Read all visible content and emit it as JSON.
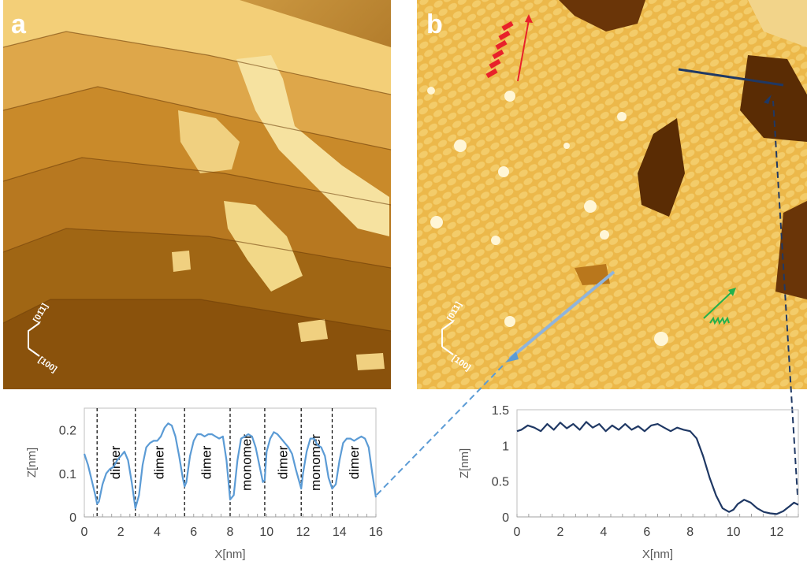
{
  "panels": {
    "a": {
      "label": "a",
      "orientation": {
        "axis1": "[01̄1]",
        "axis2": "[100]"
      }
    },
    "b": {
      "label": "b",
      "orientation": {
        "axis1": "[01̄1]",
        "axis2": "[100]"
      }
    }
  },
  "colors": {
    "terrace_dark": "#5a3000",
    "terrace_mid": "#c07a1a",
    "terrace_light": "#f2d68a",
    "highlight": "#fff2c0",
    "profile_left": "#5b9bd5",
    "profile_right": "#1f3864",
    "arrow_red": "#e8212a",
    "arrow_green": "#22b14c"
  },
  "chart_data": [
    {
      "type": "line",
      "xlabel": "X[nm]",
      "ylabel": "Z[nm]",
      "xlim": [
        0,
        16
      ],
      "ylim": [
        0,
        0.25
      ],
      "xticks": [
        0,
        2,
        4,
        6,
        8,
        10,
        12,
        14,
        16
      ],
      "yticks": [
        0,
        0.1,
        0.2
      ],
      "ytick_labels": [
        "0",
        "0.1",
        "0.2"
      ],
      "grid": false,
      "dividers": [
        0.7,
        2.8,
        5.5,
        8.0,
        9.9,
        11.9,
        13.6
      ],
      "segment_labels": [
        {
          "text": "dimer",
          "x": 1.7
        },
        {
          "text": "dimer",
          "x": 4.1
        },
        {
          "text": "dimer",
          "x": 6.7
        },
        {
          "text": "monomer",
          "x": 8.9
        },
        {
          "text": "dimer",
          "x": 10.9
        },
        {
          "text": "monomer",
          "x": 12.7
        },
        {
          "text": "dimer",
          "x": 14.8
        }
      ],
      "series": [
        {
          "x": [
            0,
            0.2,
            0.4,
            0.6,
            0.7,
            0.8,
            1.0,
            1.2,
            1.4,
            1.6,
            1.8,
            2.0,
            2.2,
            2.4,
            2.6,
            2.8,
            3.0,
            3.2,
            3.4,
            3.6,
            3.8,
            4.0,
            4.2,
            4.4,
            4.6,
            4.8,
            5.0,
            5.2,
            5.4,
            5.5,
            5.6,
            5.8,
            6.0,
            6.2,
            6.4,
            6.6,
            6.8,
            7.0,
            7.2,
            7.4,
            7.6,
            7.8,
            8.0,
            8.2,
            8.4,
            8.6,
            8.8,
            9.0,
            9.2,
            9.4,
            9.6,
            9.8,
            9.9,
            10.0,
            10.2,
            10.4,
            10.6,
            10.8,
            11.0,
            11.2,
            11.4,
            11.6,
            11.8,
            11.9,
            12.0,
            12.2,
            12.4,
            12.6,
            12.8,
            13.0,
            13.2,
            13.4,
            13.6,
            13.8,
            14.0,
            14.2,
            14.4,
            14.6,
            14.8,
            15.0,
            15.2,
            15.4,
            15.6,
            15.8,
            16.0
          ],
          "values": [
            0.145,
            0.12,
            0.085,
            0.05,
            0.03,
            0.035,
            0.075,
            0.1,
            0.11,
            0.115,
            0.13,
            0.14,
            0.15,
            0.13,
            0.08,
            0.02,
            0.05,
            0.12,
            0.16,
            0.17,
            0.175,
            0.175,
            0.185,
            0.205,
            0.215,
            0.21,
            0.185,
            0.14,
            0.09,
            0.07,
            0.08,
            0.14,
            0.175,
            0.19,
            0.19,
            0.185,
            0.19,
            0.19,
            0.185,
            0.18,
            0.185,
            0.13,
            0.04,
            0.05,
            0.13,
            0.18,
            0.185,
            0.19,
            0.185,
            0.16,
            0.12,
            0.08,
            0.085,
            0.15,
            0.18,
            0.195,
            0.19,
            0.18,
            0.17,
            0.16,
            0.145,
            0.11,
            0.08,
            0.065,
            0.1,
            0.15,
            0.18,
            0.18,
            0.165,
            0.16,
            0.14,
            0.09,
            0.065,
            0.075,
            0.13,
            0.17,
            0.18,
            0.18,
            0.175,
            0.18,
            0.185,
            0.18,
            0.16,
            0.1,
            0.045
          ]
        }
      ]
    },
    {
      "type": "line",
      "xlabel": "X[nm]",
      "ylabel": "Z[nm]",
      "xlim": [
        0,
        13
      ],
      "ylim": [
        0,
        1.5
      ],
      "xticks": [
        0,
        2,
        4,
        6,
        8,
        10,
        12
      ],
      "yticks": [
        0,
        0.5,
        1,
        1.5
      ],
      "ytick_labels": [
        "0",
        "0.5",
        "1",
        "1.5"
      ],
      "grid": false,
      "series": [
        {
          "x": [
            0,
            0.2,
            0.5,
            0.8,
            1.1,
            1.4,
            1.7,
            2.0,
            2.3,
            2.6,
            2.9,
            3.2,
            3.5,
            3.8,
            4.1,
            4.4,
            4.7,
            5.0,
            5.3,
            5.6,
            5.9,
            6.2,
            6.5,
            6.8,
            7.1,
            7.4,
            7.7,
            8.0,
            8.3,
            8.6,
            8.9,
            9.2,
            9.5,
            9.8,
            10.0,
            10.2,
            10.5,
            10.8,
            11.1,
            11.4,
            11.7,
            12.0,
            12.3,
            12.6,
            12.8,
            13.0
          ],
          "values": [
            1.2,
            1.22,
            1.28,
            1.25,
            1.2,
            1.3,
            1.22,
            1.32,
            1.24,
            1.3,
            1.22,
            1.33,
            1.25,
            1.3,
            1.2,
            1.28,
            1.22,
            1.3,
            1.22,
            1.27,
            1.2,
            1.28,
            1.3,
            1.25,
            1.2,
            1.25,
            1.22,
            1.2,
            1.1,
            0.85,
            0.55,
            0.3,
            0.12,
            0.07,
            0.1,
            0.18,
            0.24,
            0.2,
            0.12,
            0.07,
            0.05,
            0.04,
            0.08,
            0.15,
            0.2,
            0.17
          ]
        }
      ]
    }
  ]
}
